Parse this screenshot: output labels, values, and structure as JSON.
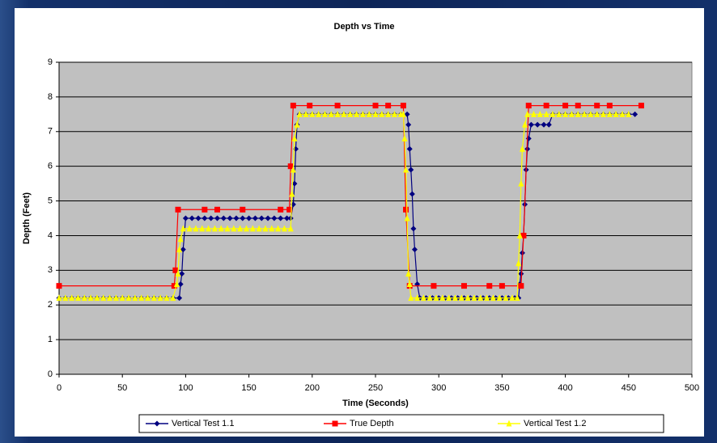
{
  "chart_data": {
    "type": "line",
    "title": "Depth vs Time",
    "x_label": "Time (Seconds)",
    "y_label": "Depth (Feet)",
    "xlim": [
      0,
      500
    ],
    "xticks": [
      0,
      50,
      100,
      150,
      200,
      250,
      300,
      350,
      400,
      450,
      500
    ],
    "ylim": [
      0,
      9
    ],
    "yticks": [
      0,
      1,
      2,
      3,
      4,
      5,
      6,
      7,
      8,
      9
    ],
    "grid": true,
    "legend": "bottom",
    "series": [
      {
        "name": "Vertical Test 1.1",
        "color": "#000080",
        "marker": "diamond",
        "x": [
          0,
          5,
          10,
          15,
          20,
          25,
          30,
          35,
          40,
          45,
          50,
          55,
          60,
          65,
          70,
          75,
          80,
          85,
          90,
          95,
          96,
          97,
          98,
          100,
          105,
          110,
          115,
          120,
          125,
          130,
          135,
          140,
          145,
          150,
          155,
          160,
          165,
          170,
          175,
          180,
          183,
          185,
          186,
          187,
          188,
          190,
          195,
          200,
          205,
          210,
          215,
          220,
          225,
          230,
          235,
          240,
          245,
          250,
          255,
          260,
          265,
          270,
          275,
          276,
          277,
          278,
          279,
          280,
          281,
          283,
          285,
          290,
          295,
          300,
          305,
          310,
          315,
          320,
          325,
          330,
          335,
          340,
          345,
          350,
          355,
          360,
          363,
          364,
          365,
          366,
          367,
          368,
          369,
          370,
          371,
          373,
          378,
          383,
          387,
          390,
          395,
          400,
          405,
          410,
          415,
          420,
          425,
          430,
          435,
          440,
          445,
          450,
          455
        ],
        "values": [
          2.2,
          2.2,
          2.2,
          2.2,
          2.2,
          2.2,
          2.2,
          2.2,
          2.2,
          2.2,
          2.2,
          2.2,
          2.2,
          2.2,
          2.2,
          2.2,
          2.2,
          2.2,
          2.2,
          2.2,
          2.6,
          2.9,
          3.6,
          4.5,
          4.5,
          4.5,
          4.5,
          4.5,
          4.5,
          4.5,
          4.5,
          4.5,
          4.5,
          4.5,
          4.5,
          4.5,
          4.5,
          4.5,
          4.5,
          4.5,
          4.5,
          4.9,
          5.5,
          6.5,
          7.2,
          7.5,
          7.5,
          7.5,
          7.5,
          7.5,
          7.5,
          7.5,
          7.5,
          7.5,
          7.5,
          7.5,
          7.5,
          7.5,
          7.5,
          7.5,
          7.5,
          7.5,
          7.5,
          7.2,
          6.5,
          5.9,
          5.2,
          4.2,
          3.6,
          2.6,
          2.2,
          2.2,
          2.2,
          2.2,
          2.2,
          2.2,
          2.2,
          2.2,
          2.2,
          2.2,
          2.2,
          2.2,
          2.2,
          2.2,
          2.2,
          2.2,
          2.2,
          2.6,
          2.9,
          3.5,
          4.0,
          4.9,
          5.9,
          6.5,
          6.8,
          7.2,
          7.2,
          7.2,
          7.2,
          7.5,
          7.5,
          7.5,
          7.5,
          7.5,
          7.5,
          7.5,
          7.5,
          7.5,
          7.5,
          7.5,
          7.5,
          7.5,
          7.5
        ]
      },
      {
        "name": "True Depth",
        "color": "#ff0000",
        "marker": "square",
        "x": [
          0,
          91,
          92,
          94,
          115,
          125,
          145,
          175,
          182,
          183,
          185,
          198,
          220,
          250,
          260,
          272,
          274,
          277,
          296,
          320,
          340,
          350,
          365,
          367,
          371,
          385,
          400,
          410,
          425,
          435,
          460
        ],
        "values": [
          2.55,
          2.55,
          3.0,
          4.75,
          4.75,
          4.75,
          4.75,
          4.75,
          4.75,
          6.0,
          7.75,
          7.75,
          7.75,
          7.75,
          7.75,
          7.75,
          4.75,
          2.55,
          2.55,
          2.55,
          2.55,
          2.55,
          2.55,
          4.0,
          7.75,
          7.75,
          7.75,
          7.75,
          7.75,
          7.75,
          7.75
        ]
      },
      {
        "name": "Vertical Test 1.2",
        "color": "#ffff00",
        "marker": "triangle",
        "x": [
          0,
          5,
          10,
          15,
          20,
          25,
          30,
          35,
          40,
          45,
          50,
          55,
          60,
          65,
          70,
          75,
          80,
          85,
          90,
          93,
          94,
          95,
          96,
          98,
          103,
          108,
          113,
          118,
          123,
          128,
          133,
          138,
          143,
          148,
          153,
          158,
          163,
          168,
          173,
          178,
          183,
          184,
          185,
          186,
          188,
          190,
          195,
          200,
          205,
          210,
          215,
          220,
          225,
          230,
          235,
          240,
          245,
          250,
          255,
          260,
          265,
          270,
          272,
          273,
          274,
          275,
          276,
          277,
          278,
          283,
          288,
          293,
          298,
          303,
          308,
          313,
          318,
          323,
          328,
          333,
          338,
          343,
          348,
          353,
          358,
          362,
          363,
          364,
          365,
          366,
          368,
          370,
          375,
          380,
          385,
          390,
          395,
          400,
          405,
          410,
          415,
          420,
          425,
          430,
          435,
          440,
          445,
          450
        ],
        "values": [
          2.2,
          2.2,
          2.2,
          2.2,
          2.2,
          2.2,
          2.2,
          2.2,
          2.2,
          2.2,
          2.2,
          2.2,
          2.2,
          2.2,
          2.2,
          2.2,
          2.2,
          2.2,
          2.2,
          2.6,
          2.9,
          3.6,
          3.9,
          4.2,
          4.2,
          4.2,
          4.2,
          4.2,
          4.2,
          4.2,
          4.2,
          4.2,
          4.2,
          4.2,
          4.2,
          4.2,
          4.2,
          4.2,
          4.2,
          4.2,
          4.2,
          5.2,
          5.9,
          6.8,
          7.2,
          7.5,
          7.5,
          7.5,
          7.5,
          7.5,
          7.5,
          7.5,
          7.5,
          7.5,
          7.5,
          7.5,
          7.5,
          7.5,
          7.5,
          7.5,
          7.5,
          7.5,
          7.5,
          6.8,
          5.9,
          4.5,
          2.9,
          2.6,
          2.2,
          2.2,
          2.2,
          2.2,
          2.2,
          2.2,
          2.2,
          2.2,
          2.2,
          2.2,
          2.2,
          2.2,
          2.2,
          2.2,
          2.2,
          2.2,
          2.2,
          2.2,
          3.2,
          4.0,
          5.5,
          6.5,
          7.2,
          7.5,
          7.5,
          7.5,
          7.5,
          7.5,
          7.5,
          7.5,
          7.5,
          7.5,
          7.5,
          7.5,
          7.5,
          7.5,
          7.5,
          7.5,
          7.5,
          7.5
        ]
      }
    ]
  }
}
